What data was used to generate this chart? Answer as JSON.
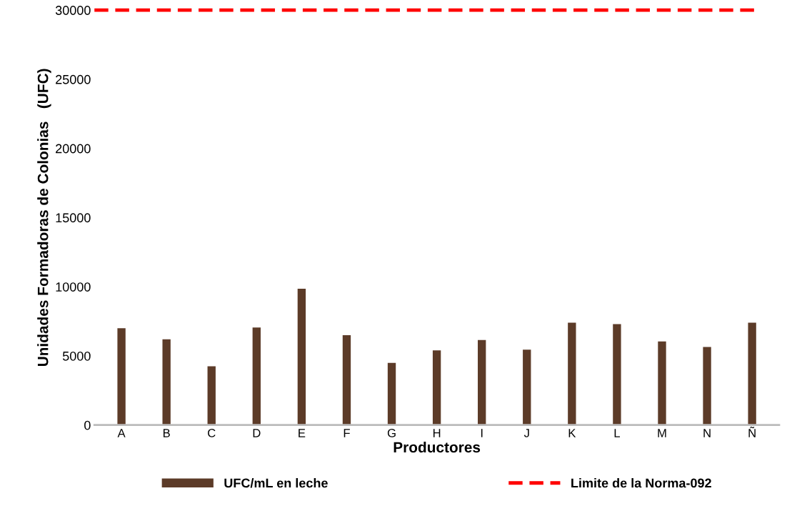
{
  "chart_data": {
    "type": "bar",
    "xlabel": "Productores",
    "ylabel": "Unidades Formadoras de Colonias   (UFC)",
    "categories": [
      "A",
      "B",
      "C",
      "D",
      "E",
      "F",
      "G",
      "H",
      "I",
      "J",
      "K",
      "L",
      "M",
      "N",
      "Ñ"
    ],
    "series": [
      {
        "name": "UFC/mL en leche",
        "color": "#5c3b28",
        "values": [
          7000,
          6200,
          4250,
          7050,
          9850,
          6500,
          4500,
          5400,
          6150,
          5450,
          7400,
          7300,
          6050,
          5650,
          7400
        ]
      }
    ],
    "ylim": [
      0,
      30000
    ],
    "yticks": [
      0,
      5000,
      10000,
      15000,
      20000,
      25000,
      30000
    ],
    "ref_lines": [
      {
        "axis": "y",
        "value": 30000,
        "label": "Limite de la Norma-092",
        "color": "#ff0000",
        "line_style": "dashed"
      }
    ],
    "grid": false,
    "legend": "bottom"
  }
}
